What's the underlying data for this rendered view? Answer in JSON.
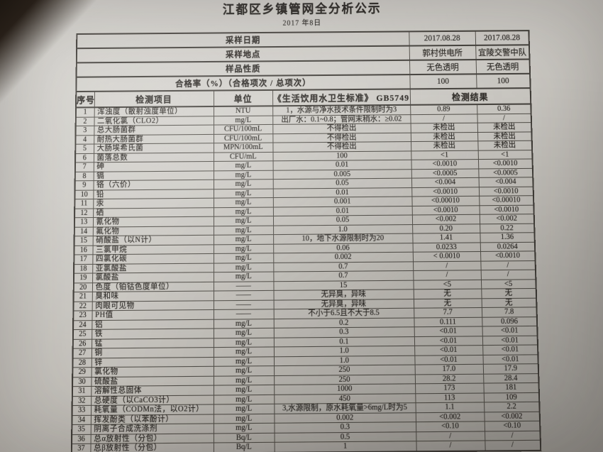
{
  "title": "江都区乡镇管网全分析公示",
  "subtitle": "2017 年8日",
  "colors": {
    "paper": "#cdcac5",
    "ink": "#2f2c28"
  },
  "info_rows": [
    {
      "label": "采样日期",
      "v1": "2017.08.28",
      "v2": "2017.08.28"
    },
    {
      "label": "采样地点",
      "v1": "郭村供电所",
      "v2": "宜陵交警中队"
    },
    {
      "label": "样品性质",
      "v1": "无色透明",
      "v2": "无色透明"
    },
    {
      "label": "合格率（%）（合格项次 / 总项次）",
      "v1": "100",
      "v2": "100"
    }
  ],
  "columns": {
    "no": "序号",
    "item": "检测项目",
    "unit": "单位",
    "standard": "《生活饮用水卫生标准》 GB5749",
    "result": "检测结果"
  },
  "rows": [
    [
      "1",
      "浑浊度（散射浊度单位）",
      "NTU",
      "1，水源与净水技术条件限制时为3",
      "0.89",
      "0.36"
    ],
    [
      "2",
      "二氧化氯（CLO2）",
      "mg/L",
      "出厂水：0.1~0.8；管网末稍水：≥0.02",
      "/",
      "/"
    ],
    [
      "3",
      "总大肠菌群",
      "CFU/100mL",
      "不得检出",
      "未检出",
      "未检出"
    ],
    [
      "4",
      "耐热大肠菌群",
      "CFU/100mL",
      "不得检出",
      "未检出",
      "未检出"
    ],
    [
      "5",
      "大肠埃希氏菌",
      "MPN/100mL",
      "不得检出",
      "未检出",
      "未检出"
    ],
    [
      "6",
      "菌落总数",
      "CFU/mL",
      "100",
      "<1",
      "<1"
    ],
    [
      "7",
      "砷",
      "mg/L",
      "0.01",
      "<0.0010",
      "<0.0010"
    ],
    [
      "8",
      "镉",
      "mg/L",
      "0.005",
      "<0.0005",
      "<0.0005"
    ],
    [
      "9",
      "铬（六价）",
      "mg/L",
      "0.05",
      "<0.004",
      "<0.004"
    ],
    [
      "10",
      "铅",
      "mg/L",
      "0.01",
      "<0.0010",
      "<0.0010"
    ],
    [
      "11",
      "汞",
      "mg/L",
      "0.001",
      "<0.00010",
      "<0.00010"
    ],
    [
      "12",
      "硒",
      "mg/L",
      "0.01",
      "<0.0010",
      "<0.0010"
    ],
    [
      "13",
      "氰化物",
      "mg/L",
      "0.05",
      "<0.002",
      "<0.002"
    ],
    [
      "14",
      "氟化物",
      "mg/L",
      "1.0",
      "0.20",
      "0.22"
    ],
    [
      "15",
      "硝酸盐（以N计）",
      "mg/L",
      "10，地下水源限制时为20",
      "1.41",
      "1.36"
    ],
    [
      "16",
      "三氯甲烷",
      "mg/L",
      "0.06",
      "0.0233",
      "0.0264"
    ],
    [
      "17",
      "四氯化碳",
      "mg/L",
      "0.002",
      "< 0.0010",
      "<0.0010"
    ],
    [
      "18",
      "亚氯酸盐",
      "mg/L",
      "0.7",
      "/",
      "/"
    ],
    [
      "19",
      "氯酸盐",
      "mg/L",
      "0.7",
      "/",
      "/"
    ],
    [
      "20",
      "色度（铂钴色度单位）",
      "——",
      "15",
      "<5",
      "<5"
    ],
    [
      "21",
      "臭和味",
      "——",
      "无异臭，异味",
      "无",
      "无"
    ],
    [
      "22",
      "肉眼可见物",
      "——",
      "无异臭，异味",
      "无",
      "无"
    ],
    [
      "23",
      "PH值",
      "——",
      "不小于6.5且不大于8.5",
      "7.7",
      "7.8"
    ],
    [
      "24",
      "铝",
      "mg/L",
      "0.2",
      "0.111",
      "0.096"
    ],
    [
      "25",
      "铁",
      "mg/L",
      "0.3",
      "<0.01",
      "<0.01"
    ],
    [
      "26",
      "锰",
      "mg/L",
      "0.1",
      "<0.01",
      "<0.01"
    ],
    [
      "27",
      "铜",
      "mg/L",
      "1.0",
      "<0.01",
      "<0.01"
    ],
    [
      "28",
      "锌",
      "mg/L",
      "1.0",
      "<0.01",
      "<0.01"
    ],
    [
      "29",
      "氯化物",
      "mg/L",
      "250",
      "17.0",
      "17.9"
    ],
    [
      "30",
      "硫酸盐",
      "mg/L",
      "250",
      "28.2",
      "28.4"
    ],
    [
      "31",
      "溶解性总固体",
      "mg/L",
      "1000",
      "173",
      "181"
    ],
    [
      "32",
      "总硬度（以CaCO3计）",
      "mg/L",
      "450",
      "113",
      "109"
    ],
    [
      "33",
      "耗氧量（CODMn法，以O2计）",
      "mg/L",
      "3,水源限制，原水耗氧量>6mg/L时为5",
      "1.1",
      "2.2"
    ],
    [
      "34",
      "挥发酚类（以苯酚计）",
      "mg/L",
      "0.002",
      "<0.002",
      "<0.002"
    ],
    [
      "35",
      "阴离子合成洗涤剂",
      "mg/L",
      "0.3",
      "<0.10",
      "<0.10"
    ],
    [
      "36",
      "总α放射性（分包）",
      "Bq/L",
      "0.5",
      "/",
      "/"
    ],
    [
      "37",
      "总β放射性（分包）",
      "Bq/L",
      "1",
      "/",
      "/"
    ]
  ]
}
